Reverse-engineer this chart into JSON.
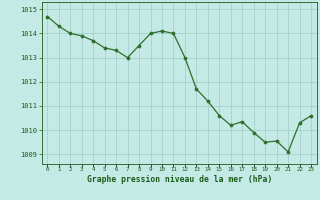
{
  "x": [
    0,
    1,
    2,
    3,
    4,
    5,
    6,
    7,
    8,
    9,
    10,
    11,
    12,
    13,
    14,
    15,
    16,
    17,
    18,
    19,
    20,
    21,
    22,
    23
  ],
  "y": [
    1014.7,
    1014.3,
    1014.0,
    1013.9,
    1013.7,
    1013.4,
    1013.3,
    1013.0,
    1013.5,
    1014.0,
    1014.1,
    1014.0,
    1013.0,
    1011.7,
    1011.2,
    1010.6,
    1010.2,
    1010.35,
    1009.9,
    1009.5,
    1009.55,
    1009.1,
    1010.3,
    1010.6
  ],
  "line_color": "#2d6e2d",
  "marker_color": "#2d6e2d",
  "bg_color": "#c5eae5",
  "grid_color": "#9eccc5",
  "label_color": "#1a5c1a",
  "title": "Graphe pression niveau de la mer (hPa)",
  "ylim": [
    1008.6,
    1015.3
  ],
  "yticks": [
    1009,
    1010,
    1011,
    1012,
    1013,
    1014,
    1015
  ],
  "xticks": [
    0,
    1,
    2,
    3,
    4,
    5,
    6,
    7,
    8,
    9,
    10,
    11,
    12,
    13,
    14,
    15,
    16,
    17,
    18,
    19,
    20,
    21,
    22,
    23
  ],
  "xtick_labels": [
    "0",
    "1",
    "2",
    "3",
    "4",
    "5",
    "6",
    "7",
    "8",
    "9",
    "10",
    "11",
    "12",
    "13",
    "14",
    "15",
    "16",
    "17",
    "18",
    "19",
    "20",
    "21",
    "22",
    "23"
  ]
}
